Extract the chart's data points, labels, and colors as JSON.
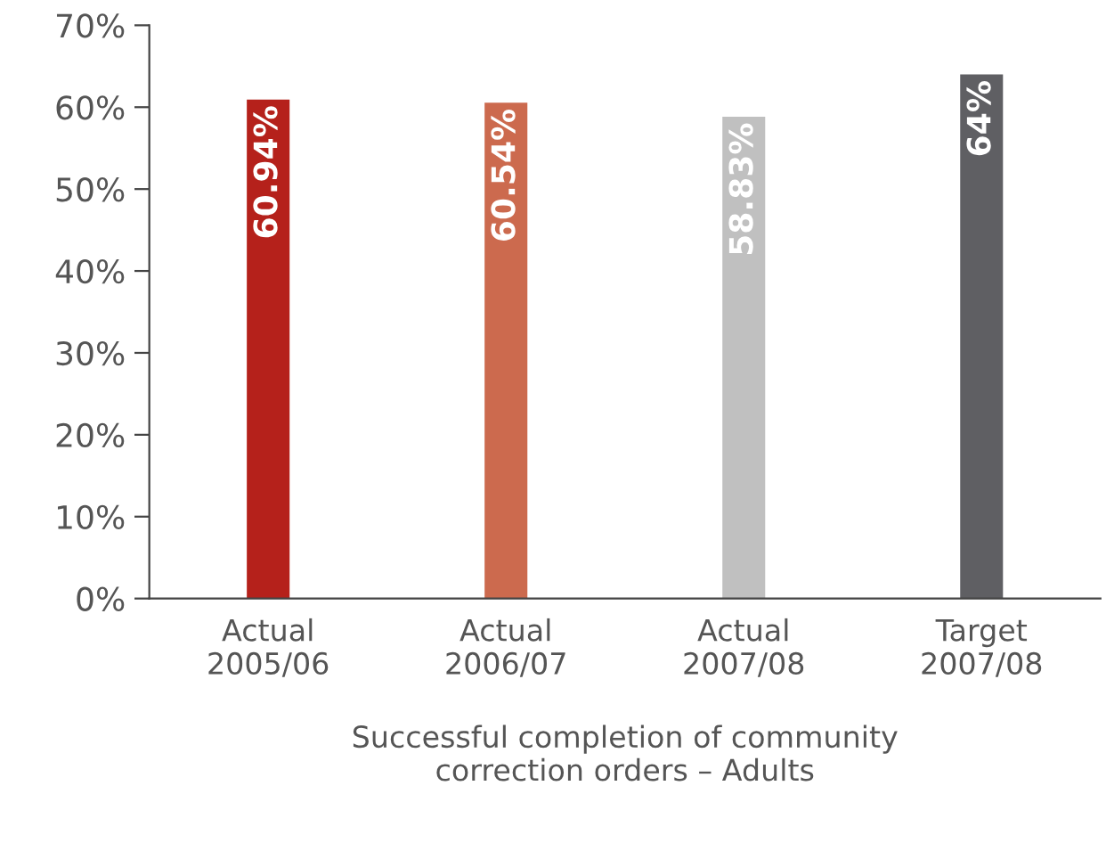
{
  "chart_data": {
    "type": "bar",
    "xlabel": "Successful completion of community\ncorrection orders – Adults",
    "categories": [
      "Actual\n2005/06",
      "Actual\n2006/07",
      "Actual\n2007/08",
      "Target\n2007/08"
    ],
    "values": [
      60.94,
      60.54,
      58.83,
      64
    ],
    "colors": [
      "#b5211b",
      "#cc6a4e",
      "#c0c0c0",
      "#5f5f63"
    ],
    "value_labels": [
      "60.94%",
      "60.54%",
      "58.83%",
      "64%"
    ],
    "ylim": [
      0,
      70
    ],
    "yticks": [
      {
        "value": 0,
        "label": "0%"
      },
      {
        "value": 10,
        "label": "10%"
      },
      {
        "value": 20,
        "label": "20%"
      },
      {
        "value": 30,
        "label": "30%"
      },
      {
        "value": 40,
        "label": "40%"
      },
      {
        "value": 50,
        "label": "50%"
      },
      {
        "value": 60,
        "label": "60%"
      },
      {
        "value": 70,
        "label": "70%"
      }
    ],
    "grid": false
  }
}
